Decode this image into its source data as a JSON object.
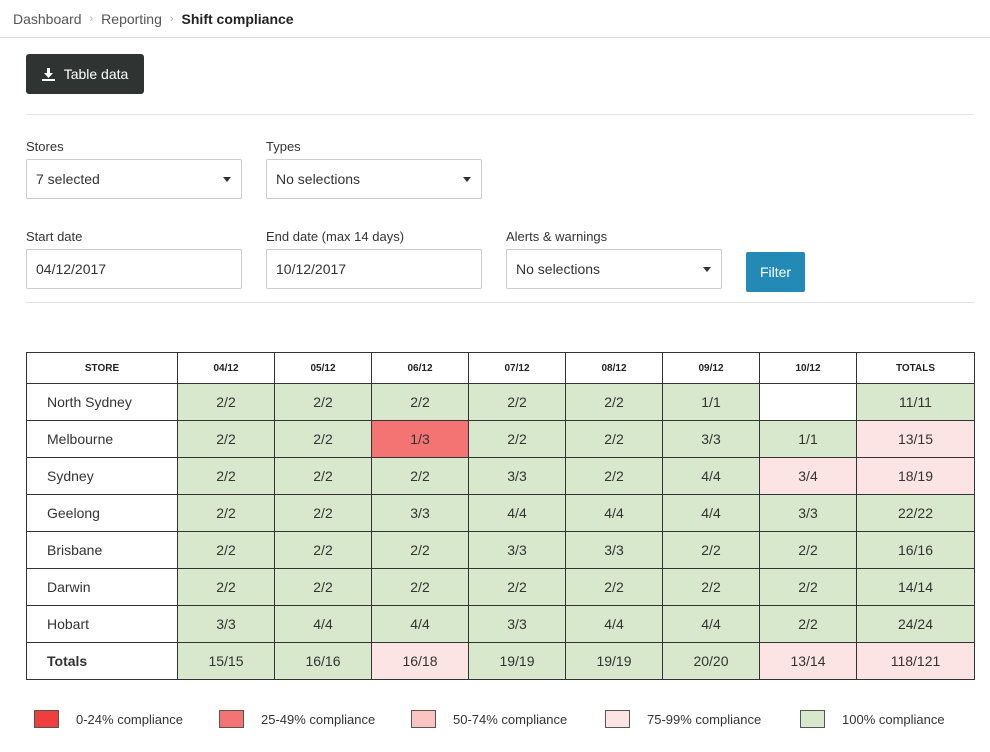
{
  "breadcrumb": [
    "Dashboard",
    "Reporting",
    "Shift compliance"
  ],
  "toolbar": {
    "table_data_label": "Table data",
    "download_icon": "download-icon"
  },
  "filters": {
    "stores": {
      "label": "Stores",
      "value": "7 selected"
    },
    "types": {
      "label": "Types",
      "value": "No selections"
    },
    "start_date": {
      "label": "Start date",
      "value": "04/12/2017"
    },
    "end_date": {
      "label": "End date (max 14 days)",
      "value": "10/12/2017"
    },
    "alerts": {
      "label": "Alerts & warnings",
      "value": "No selections"
    },
    "filter_label": "Filter"
  },
  "table": {
    "headers": [
      "STORE",
      "04/12",
      "05/12",
      "06/12",
      "07/12",
      "08/12",
      "09/12",
      "10/12",
      "TOTALS"
    ],
    "rows": [
      {
        "store": "North Sydney",
        "cells": [
          "2/2",
          "2/2",
          "2/2",
          "2/2",
          "2/2",
          "1/1",
          "",
          "11/11"
        ],
        "levels": [
          "100",
          "100",
          "100",
          "100",
          "100",
          "100",
          "none",
          "100"
        ]
      },
      {
        "store": "Melbourne",
        "cells": [
          "2/2",
          "2/2",
          "1/3",
          "2/2",
          "2/2",
          "3/3",
          "1/1",
          "13/15"
        ],
        "levels": [
          "100",
          "100",
          "25",
          "100",
          "100",
          "100",
          "100",
          "75"
        ]
      },
      {
        "store": "Sydney",
        "cells": [
          "2/2",
          "2/2",
          "2/2",
          "3/3",
          "2/2",
          "4/4",
          "3/4",
          "18/19"
        ],
        "levels": [
          "100",
          "100",
          "100",
          "100",
          "100",
          "100",
          "75",
          "75"
        ]
      },
      {
        "store": "Geelong",
        "cells": [
          "2/2",
          "2/2",
          "3/3",
          "4/4",
          "4/4",
          "4/4",
          "3/3",
          "22/22"
        ],
        "levels": [
          "100",
          "100",
          "100",
          "100",
          "100",
          "100",
          "100",
          "100"
        ]
      },
      {
        "store": "Brisbane",
        "cells": [
          "2/2",
          "2/2",
          "2/2",
          "3/3",
          "3/3",
          "2/2",
          "2/2",
          "16/16"
        ],
        "levels": [
          "100",
          "100",
          "100",
          "100",
          "100",
          "100",
          "100",
          "100"
        ]
      },
      {
        "store": "Darwin",
        "cells": [
          "2/2",
          "2/2",
          "2/2",
          "2/2",
          "2/2",
          "2/2",
          "2/2",
          "14/14"
        ],
        "levels": [
          "100",
          "100",
          "100",
          "100",
          "100",
          "100",
          "100",
          "100"
        ]
      },
      {
        "store": "Hobart",
        "cells": [
          "3/3",
          "4/4",
          "4/4",
          "3/3",
          "4/4",
          "4/4",
          "2/2",
          "24/24"
        ],
        "levels": [
          "100",
          "100",
          "100",
          "100",
          "100",
          "100",
          "100",
          "100"
        ]
      }
    ],
    "totals": {
      "store": "Totals",
      "cells": [
        "15/15",
        "16/16",
        "16/18",
        "19/19",
        "19/19",
        "20/20",
        "13/14",
        "118/121"
      ],
      "levels": [
        "100",
        "100",
        "75",
        "100",
        "100",
        "100",
        "75",
        "75"
      ]
    }
  },
  "legend": [
    {
      "label": "0-24% compliance",
      "color": "#ee3f3f"
    },
    {
      "label": "25-49% compliance",
      "color": "#f47373"
    },
    {
      "label": "50-74% compliance",
      "color": "#fbc3c2"
    },
    {
      "label": "75-99% compliance",
      "color": "#fde4e4"
    },
    {
      "label": "100% compliance",
      "color": "#d8e8cd"
    }
  ]
}
